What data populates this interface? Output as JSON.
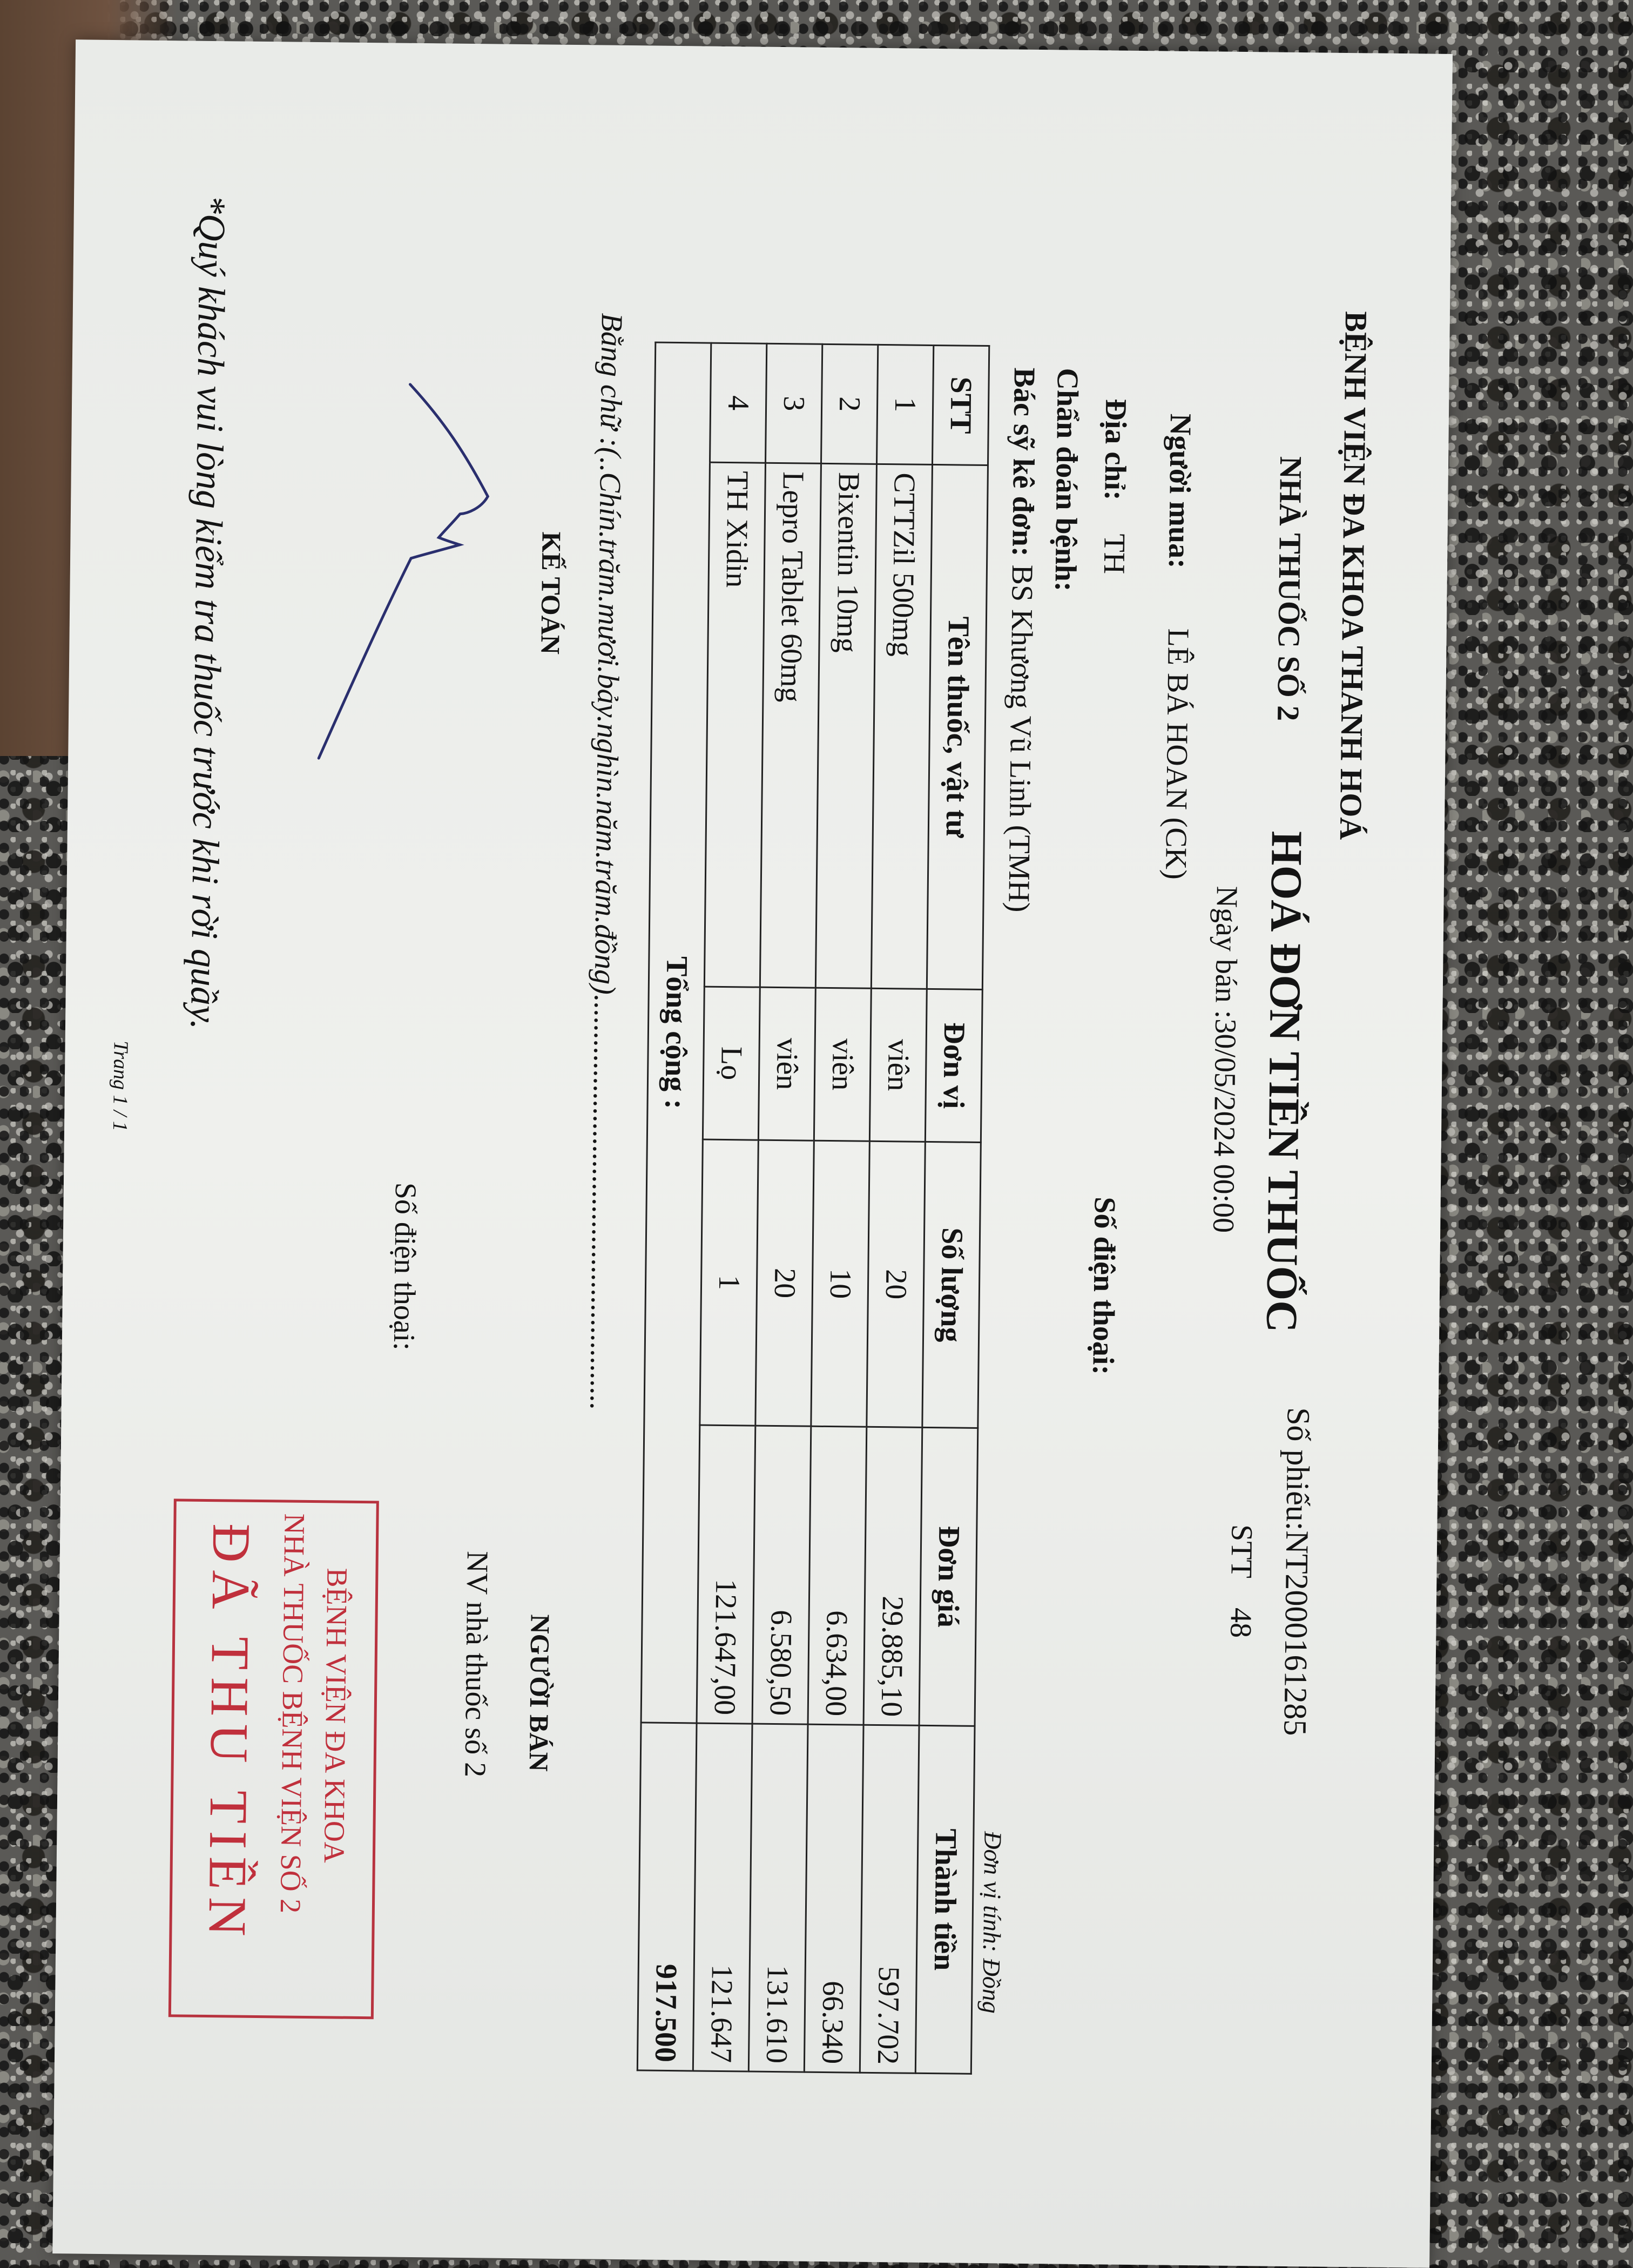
{
  "header": {
    "hospital": "BỆNH VIỆN ĐA KHOA THANH HOÁ",
    "pharmacy": "NHÀ THUỐC SỐ 2",
    "title": "HOÁ ĐƠN TIỀN THUỐC",
    "sale_date": "Ngày bán :30/05/2024 00:00",
    "receipt_no": "Số phiếu:NT2000161285",
    "stt_label": "STT",
    "stt_value": "48"
  },
  "stamp": {
    "line1": "BỆNH VIỆN ĐA KHOA",
    "line2": "NHÀ THUỐC BỆNH VIỆN SỐ 2",
    "line3": "ĐÃ THU TIỀN",
    "color": "#c0303c"
  },
  "buyer": {
    "label": "Người mua:",
    "name": "LÊ BÁ HOAN  (CK)",
    "address_label": "Địa chỉ:",
    "address": "TH",
    "phone_label": "Số điện thoại:",
    "diagnosis_label": "Chẩn đoán bệnh:",
    "doctor_label": "Bác sỹ kê đơn:",
    "doctor": "BS Khương Vũ Linh (TMH)"
  },
  "unit_note": "Đơn vị tính: Đồng",
  "table": {
    "headers": [
      "STT",
      "Tên thuốc, vật tư",
      "Đơn vị",
      "Số lượng",
      "Đơn giá",
      "Thành tiền"
    ],
    "rows": [
      [
        "1",
        "CTTZil 500mg",
        "viên",
        "20",
        "29.885,10",
        "597.702"
      ],
      [
        "2",
        "Bixentin 10mg",
        "viên",
        "10",
        "6.634,00",
        "66.340"
      ],
      [
        "3",
        "Lepro Tablet 60mg",
        "viên",
        "20",
        "6.580,50",
        "131.610"
      ],
      [
        "4",
        "TH Xidin",
        "Lọ",
        "1",
        "121.647,00",
        "121.647"
      ]
    ],
    "total_label": "Tổng cộng :",
    "total": "917.500"
  },
  "in_words": "Bằng chữ :(..Chín.trăm.mươi.bảy.nghìn.năm.trăm.đồng).......................................................",
  "signatures": {
    "accountant": "KẾ TOÁN",
    "seller": "NGƯỜI BÁN",
    "seller_name": "NV nhà thuốc số 2",
    "phone_label": "Số điện thoại:"
  },
  "footer": {
    "note": "*Quý khách vui lòng kiểm tra thuốc trước khi rời quầy.",
    "page": "Trang 1 / 1"
  }
}
